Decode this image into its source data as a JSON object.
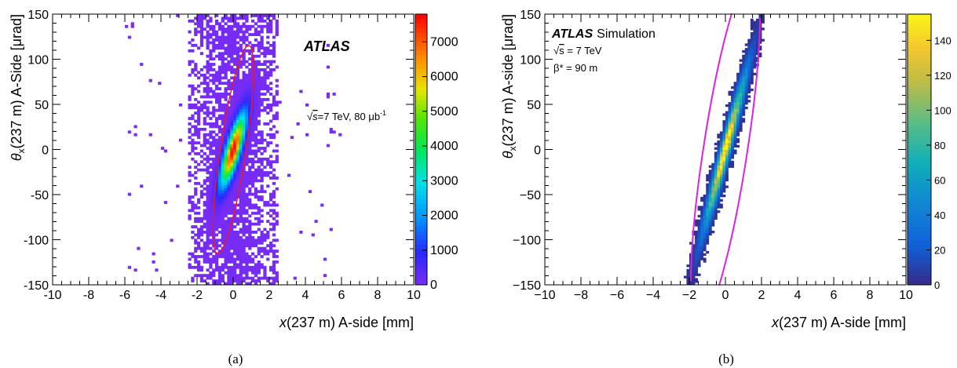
{
  "chart_data": [
    {
      "type": "heatmap",
      "panel_label": "(a)",
      "xlabel": {
        "var": "x",
        "rest": "(237 m) A-side [mm]"
      },
      "ylabel": {
        "var": "θ",
        "sub": "x",
        "rest": "(237 m) A-Side [μrad]"
      },
      "xlim": [
        -10,
        10
      ],
      "ylim": [
        -150,
        150
      ],
      "x_ticks": [
        -10,
        -8,
        -6,
        -4,
        -2,
        0,
        2,
        4,
        6,
        8,
        10
      ],
      "y_ticks": [
        -150,
        -100,
        -50,
        0,
        50,
        100,
        150
      ],
      "x_tick_labels": [
        "-10",
        "-8",
        "-6",
        "-4",
        "-2",
        "0",
        "2",
        "4",
        "6",
        "8",
        "10"
      ],
      "y_tick_labels": [
        "-150",
        "-100",
        "-50",
        "0",
        "50",
        "100",
        "150"
      ],
      "z_range": [
        0,
        7800
      ],
      "colorbar_ticks": [
        0,
        1000,
        2000,
        3000,
        4000,
        5000,
        6000,
        7000
      ],
      "colorbar_tick_labels": [
        "0",
        "1000",
        "2000",
        "3000",
        "4000",
        "5000",
        "6000",
        "7000"
      ],
      "colormap": "rainbow",
      "color_low": "#7b2cf5",
      "color_high": "#ff0000",
      "annotations": {
        "experiment": "ATLAS",
        "energy_prefix": "s",
        "energy_rest": "=7 TeV, 80 μb",
        "energy_exp": "-1"
      },
      "overlay_ellipse": {
        "center": [
          0,
          0
        ],
        "x_extent": [
          -1.7,
          1.7
        ],
        "y_extent": [
          -112,
          112
        ],
        "color": "#e8192c"
      },
      "distribution": {
        "core": {
          "center": [
            0,
            0
          ],
          "sigma_x": 0.45,
          "sigma_y": 26,
          "correlation": 0.8,
          "peak": 7800
        },
        "halo_band": {
          "x_range": [
            -2.5,
            2.5
          ],
          "y_range": [
            -150,
            150
          ]
        }
      }
    },
    {
      "type": "heatmap",
      "panel_label": "(b)",
      "xlabel": {
        "var": "x",
        "rest": "(237 m) A-side [mm]"
      },
      "ylabel": {
        "var": "θ",
        "sub": "x",
        "rest": "(237 m) A-side [μrad]"
      },
      "xlim": [
        -10,
        10
      ],
      "ylim": [
        -150,
        150
      ],
      "x_ticks": [
        -10,
        -8,
        -6,
        -4,
        -2,
        0,
        2,
        4,
        6,
        8,
        10
      ],
      "y_ticks": [
        -150,
        -100,
        -50,
        0,
        50,
        100,
        150
      ],
      "x_tick_labels": [
        "−10",
        "−8",
        "−6",
        "−4",
        "−2",
        "0",
        "2",
        "4",
        "6",
        "8",
        "10"
      ],
      "y_tick_labels": [
        "−150",
        "−100",
        "−50",
        "0",
        "50",
        "100",
        "150"
      ],
      "z_range": [
        0,
        155
      ],
      "colorbar_ticks": [
        0,
        20,
        40,
        60,
        80,
        100,
        120,
        140
      ],
      "colorbar_tick_labels": [
        "0",
        "20",
        "40",
        "60",
        "80",
        "100",
        "120",
        "140"
      ],
      "colormap": "parula",
      "color_low": "#3a2cb0",
      "color_high": "#f9f11a",
      "annotations": {
        "experiment": "ATLAS",
        "tag": "Simulation",
        "energy_prefix": "s",
        "energy_rest": " = 7 TeV",
        "beta": "β* = 90 m"
      },
      "overlay_ellipse": {
        "center": [
          0,
          0
        ],
        "x_extent": [
          -2.9,
          2.9
        ],
        "y_extent": [
          -190,
          190
        ],
        "color": "#e020e0"
      },
      "distribution": {
        "core": {
          "center": [
            0,
            0
          ],
          "sigma_x": 0.75,
          "sigma_y": 55,
          "correlation": 0.97,
          "peak": 155
        }
      }
    }
  ]
}
